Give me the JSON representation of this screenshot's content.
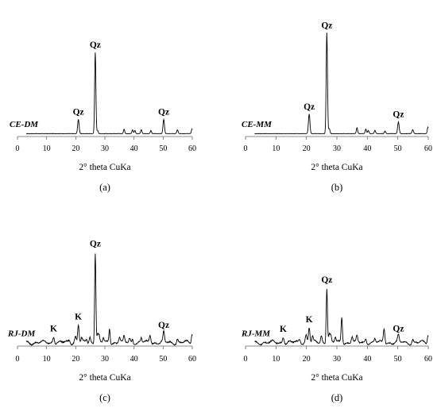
{
  "figure": {
    "panels": [
      "a",
      "b",
      "c",
      "d"
    ]
  },
  "chart_data": [
    {
      "id": "a",
      "type": "line",
      "panel_label": "(a)",
      "sample_label": "CE-DM",
      "xlabel": "2° theta CuKa",
      "ylabel": "",
      "xlim": [
        0,
        60
      ],
      "xticks": [
        0,
        10,
        20,
        30,
        40,
        50,
        60
      ],
      "grid": false,
      "color": "#000000",
      "baseline": 2,
      "noise": 0.4,
      "peaks": [
        {
          "x": 20.9,
          "h": 22,
          "w": 0.35
        },
        {
          "x": 26.7,
          "h": 125,
          "w": 0.3
        },
        {
          "x": 27.5,
          "h": 5,
          "w": 0.3
        },
        {
          "x": 36.6,
          "h": 7,
          "w": 0.3
        },
        {
          "x": 39.5,
          "h": 6,
          "w": 0.3
        },
        {
          "x": 40.3,
          "h": 5,
          "w": 0.3
        },
        {
          "x": 42.5,
          "h": 6,
          "w": 0.3
        },
        {
          "x": 45.8,
          "h": 5,
          "w": 0.3
        },
        {
          "x": 50.2,
          "h": 22,
          "w": 0.35
        },
        {
          "x": 54.9,
          "h": 6,
          "w": 0.35
        },
        {
          "x": 59.9,
          "h": 7,
          "w": 0.3
        }
      ],
      "annotations": [
        {
          "text": "Qz",
          "x": 20.9
        },
        {
          "text": "Qz",
          "x": 26.7
        },
        {
          "text": "Qz",
          "x": 50.2
        }
      ]
    },
    {
      "id": "b",
      "type": "line",
      "panel_label": "(b)",
      "sample_label": "CE-MM",
      "xlabel": "2° theta CuKa",
      "ylabel": "",
      "xlim": [
        0,
        60
      ],
      "xticks": [
        0,
        10,
        20,
        30,
        40,
        50,
        60
      ],
      "grid": false,
      "color": "#000000",
      "baseline": 2,
      "noise": 0.4,
      "peaks": [
        {
          "x": 20.9,
          "h": 30,
          "w": 0.35
        },
        {
          "x": 26.7,
          "h": 155,
          "w": 0.3
        },
        {
          "x": 27.5,
          "h": 8,
          "w": 0.3
        },
        {
          "x": 36.6,
          "h": 9,
          "w": 0.3
        },
        {
          "x": 39.5,
          "h": 7,
          "w": 0.3
        },
        {
          "x": 40.3,
          "h": 5,
          "w": 0.3
        },
        {
          "x": 42.5,
          "h": 5,
          "w": 0.3
        },
        {
          "x": 45.8,
          "h": 4,
          "w": 0.3
        },
        {
          "x": 50.2,
          "h": 18,
          "w": 0.35
        },
        {
          "x": 54.9,
          "h": 6,
          "w": 0.35
        },
        {
          "x": 59.9,
          "h": 10,
          "w": 0.3
        }
      ],
      "annotations": [
        {
          "text": "Qz",
          "x": 20.9
        },
        {
          "text": "Qz",
          "x": 26.7
        },
        {
          "text": "Qz",
          "x": 50.2
        }
      ]
    },
    {
      "id": "c",
      "type": "line",
      "panel_label": "(c)",
      "sample_label": "RJ-DM",
      "xlabel": "2° theta CuKa",
      "ylabel": "",
      "xlim": [
        0,
        60
      ],
      "xticks": [
        0,
        10,
        20,
        30,
        40,
        50,
        60
      ],
      "grid": false,
      "color": "#000000",
      "baseline": 3,
      "noise": 1.5,
      "peaks": [
        {
          "x": 12.4,
          "h": 10,
          "w": 0.4
        },
        {
          "x": 17.8,
          "h": 4,
          "w": 0.4
        },
        {
          "x": 19.9,
          "h": 10,
          "w": 0.4
        },
        {
          "x": 20.9,
          "h": 28,
          "w": 0.35
        },
        {
          "x": 22.0,
          "h": 6,
          "w": 0.3
        },
        {
          "x": 23.7,
          "h": 5,
          "w": 0.3
        },
        {
          "x": 24.9,
          "h": 8,
          "w": 0.35
        },
        {
          "x": 26.7,
          "h": 140,
          "w": 0.3
        },
        {
          "x": 27.5,
          "h": 14,
          "w": 0.3
        },
        {
          "x": 28.0,
          "h": 10,
          "w": 0.3
        },
        {
          "x": 29.5,
          "h": 7,
          "w": 0.3
        },
        {
          "x": 31.6,
          "h": 22,
          "w": 0.3
        },
        {
          "x": 35.0,
          "h": 9,
          "w": 0.4
        },
        {
          "x": 36.6,
          "h": 8,
          "w": 0.3
        },
        {
          "x": 38.5,
          "h": 6,
          "w": 0.4
        },
        {
          "x": 39.5,
          "h": 6,
          "w": 0.3
        },
        {
          "x": 42.5,
          "h": 7,
          "w": 0.3
        },
        {
          "x": 45.5,
          "h": 12,
          "w": 0.4
        },
        {
          "x": 50.2,
          "h": 15,
          "w": 0.35
        },
        {
          "x": 54.9,
          "h": 6,
          "w": 0.35
        },
        {
          "x": 59.9,
          "h": 14,
          "w": 0.3
        }
      ],
      "annotations": [
        {
          "text": "K",
          "x": 12.4
        },
        {
          "text": "K",
          "x": 20.9
        },
        {
          "text": "Qz",
          "x": 26.7
        },
        {
          "text": "Qz",
          "x": 50.2
        }
      ]
    },
    {
      "id": "d",
      "type": "line",
      "panel_label": "(d)",
      "sample_label": "RJ-MM",
      "xlabel": "2° theta CuKa",
      "ylabel": "",
      "xlim": [
        0,
        60
      ],
      "xticks": [
        0,
        10,
        20,
        30,
        40,
        50,
        60
      ],
      "grid": false,
      "color": "#000000",
      "baseline": 3,
      "noise": 1.5,
      "peaks": [
        {
          "x": 12.4,
          "h": 9,
          "w": 0.4
        },
        {
          "x": 17.8,
          "h": 5,
          "w": 0.4
        },
        {
          "x": 19.9,
          "h": 12,
          "w": 0.4
        },
        {
          "x": 20.9,
          "h": 24,
          "w": 0.35
        },
        {
          "x": 22.0,
          "h": 8,
          "w": 0.3
        },
        {
          "x": 24.9,
          "h": 10,
          "w": 0.35
        },
        {
          "x": 26.7,
          "h": 85,
          "w": 0.3
        },
        {
          "x": 27.5,
          "h": 14,
          "w": 0.3
        },
        {
          "x": 28.0,
          "h": 10,
          "w": 0.3
        },
        {
          "x": 29.5,
          "h": 8,
          "w": 0.3
        },
        {
          "x": 31.6,
          "h": 40,
          "w": 0.3
        },
        {
          "x": 35.0,
          "h": 10,
          "w": 0.4
        },
        {
          "x": 36.6,
          "h": 9,
          "w": 0.3
        },
        {
          "x": 39.5,
          "h": 7,
          "w": 0.3
        },
        {
          "x": 42.5,
          "h": 6,
          "w": 0.3
        },
        {
          "x": 45.5,
          "h": 22,
          "w": 0.35
        },
        {
          "x": 50.2,
          "h": 10,
          "w": 0.35
        },
        {
          "x": 54.9,
          "h": 5,
          "w": 0.35
        },
        {
          "x": 59.9,
          "h": 12,
          "w": 0.3
        }
      ],
      "annotations": [
        {
          "text": "K",
          "x": 12.4
        },
        {
          "text": "K",
          "x": 20.9
        },
        {
          "text": "Qz",
          "x": 26.7
        },
        {
          "text": "Qz",
          "x": 50.2
        }
      ]
    }
  ]
}
